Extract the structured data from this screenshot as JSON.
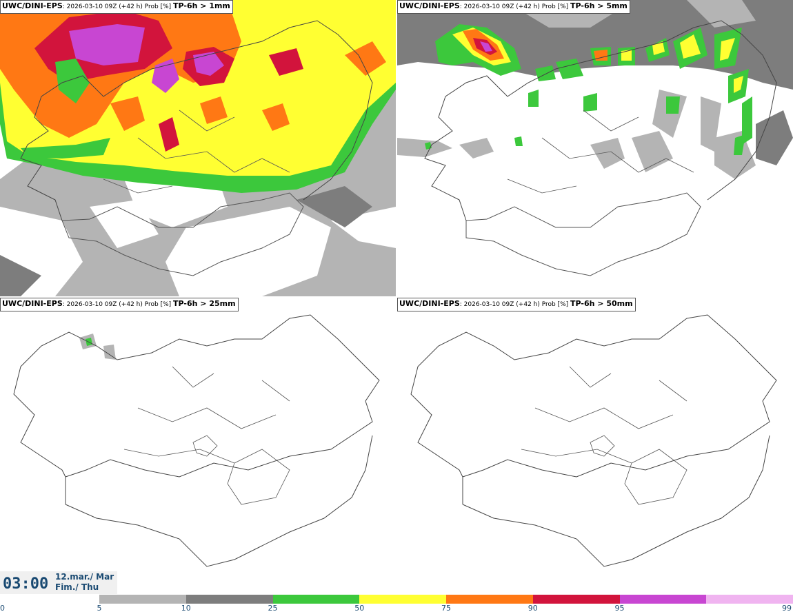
{
  "panels": [
    {
      "model": "UWC/DINI-EPS",
      "meta": ": 2026-03-10 09Z (+42 h) Prob [%] ",
      "threshold": "TP-6h > 1mm"
    },
    {
      "model": "UWC/DINI-EPS",
      "meta": ": 2026-03-10 09Z (+42 h) Prob [%] ",
      "threshold": "TP-6h > 5mm"
    },
    {
      "model": "UWC/DINI-EPS",
      "meta": ": 2026-03-10 09Z (+42 h) Prob [%] ",
      "threshold": "TP-6h > 25mm"
    },
    {
      "model": "UWC/DINI-EPS",
      "meta": ": 2026-03-10 09Z (+42 h) Prob [%] ",
      "threshold": "TP-6h > 50mm"
    }
  ],
  "valid_time": {
    "time": "03:00",
    "date_line1": "12.mar./ Mar",
    "date_line2": "Fim./ Thu"
  },
  "colorbar": {
    "ticks": [
      "0",
      "5",
      "10",
      "25",
      "50",
      "75",
      "90",
      "95",
      "99"
    ],
    "colors": [
      "#b4b4b4",
      "#7d7d7d",
      "#3cc83c",
      "#ffff32",
      "#ff7814",
      "#d2143c",
      "#c846d2",
      "#f0b4f0"
    ]
  }
}
